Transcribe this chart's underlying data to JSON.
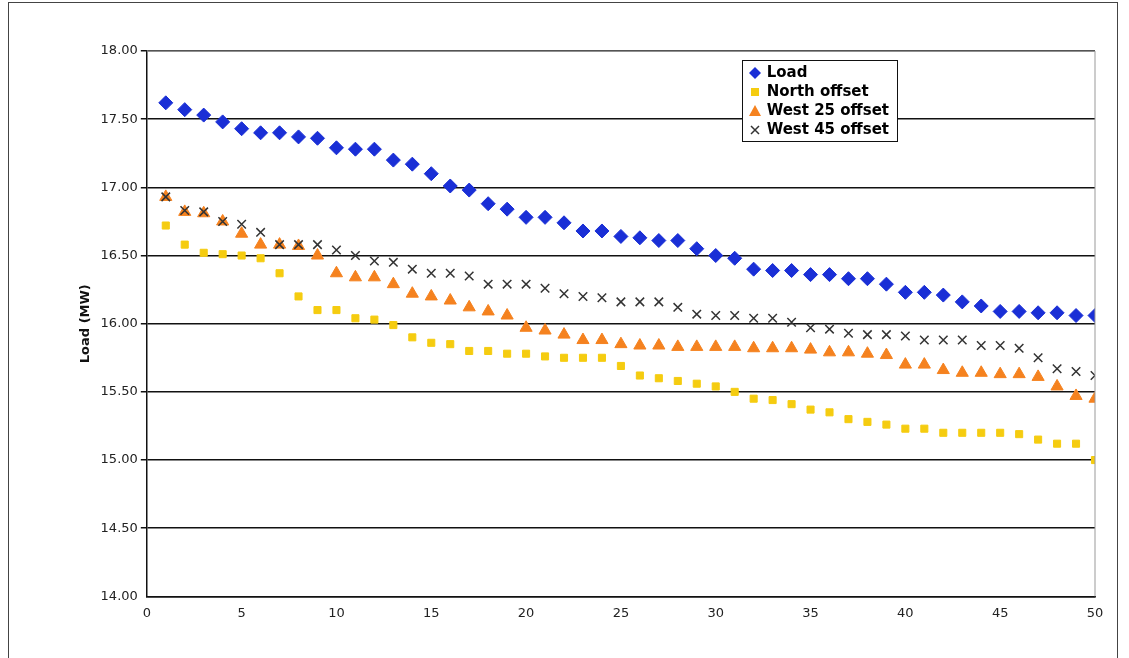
{
  "chart_data": {
    "type": "scatter",
    "ylabel": "Load (MW)",
    "x": [
      1,
      2,
      3,
      4,
      5,
      6,
      7,
      8,
      9,
      10,
      11,
      12,
      13,
      14,
      15,
      16,
      17,
      18,
      19,
      20,
      21,
      22,
      23,
      24,
      25,
      26,
      27,
      28,
      29,
      30,
      31,
      32,
      33,
      34,
      35,
      36,
      37,
      38,
      39,
      40,
      41,
      42,
      43,
      44,
      45,
      46,
      47,
      48,
      49,
      50
    ],
    "series": [
      {
        "name": "Load",
        "color": "#1a2fd6",
        "marker": "diamond",
        "values": [
          17.62,
          17.57,
          17.53,
          17.48,
          17.43,
          17.4,
          17.4,
          17.37,
          17.36,
          17.29,
          17.28,
          17.28,
          17.2,
          17.17,
          17.1,
          17.01,
          16.98,
          16.88,
          16.84,
          16.78,
          16.78,
          16.74,
          16.68,
          16.68,
          16.64,
          16.63,
          16.61,
          16.61,
          16.55,
          16.5,
          16.48,
          16.4,
          16.39,
          16.39,
          16.36,
          16.36,
          16.33,
          16.33,
          16.29,
          16.23,
          16.23,
          16.21,
          16.16,
          16.13,
          16.09,
          16.09,
          16.08,
          16.08,
          16.06,
          16.06
        ]
      },
      {
        "name": "North offset",
        "color": "#f5cc10",
        "marker": "square",
        "values": [
          16.72,
          16.58,
          16.52,
          16.51,
          16.5,
          16.48,
          16.37,
          16.2,
          16.1,
          16.1,
          16.04,
          16.03,
          15.99,
          15.9,
          15.86,
          15.85,
          15.8,
          15.8,
          15.78,
          15.78,
          15.76,
          15.75,
          15.75,
          15.75,
          15.69,
          15.62,
          15.6,
          15.58,
          15.56,
          15.54,
          15.5,
          15.45,
          15.44,
          15.41,
          15.37,
          15.35,
          15.3,
          15.28,
          15.26,
          15.23,
          15.23,
          15.2,
          15.2,
          15.2,
          15.2,
          15.19,
          15.15,
          15.12,
          15.12,
          15.0
        ]
      },
      {
        "name": "West 25 offset",
        "color": "#f5821f",
        "marker": "triangle",
        "values": [
          16.93,
          16.82,
          16.81,
          16.75,
          16.66,
          16.58,
          16.58,
          16.57,
          16.5,
          16.37,
          16.34,
          16.34,
          16.29,
          16.22,
          16.2,
          16.17,
          16.12,
          16.09,
          16.06,
          15.97,
          15.95,
          15.92,
          15.88,
          15.88,
          15.85,
          15.84,
          15.84,
          15.83,
          15.83,
          15.83,
          15.83,
          15.82,
          15.82,
          15.82,
          15.81,
          15.79,
          15.79,
          15.78,
          15.77,
          15.7,
          15.7,
          15.66,
          15.64,
          15.64,
          15.63,
          15.63,
          15.61,
          15.54,
          15.47,
          15.45
        ]
      },
      {
        "name": "West 45 offset",
        "color": "#333333",
        "marker": "cross",
        "values": [
          16.93,
          16.83,
          16.82,
          16.75,
          16.73,
          16.67,
          16.58,
          16.58,
          16.58,
          16.54,
          16.5,
          16.46,
          16.45,
          16.4,
          16.37,
          16.37,
          16.35,
          16.29,
          16.29,
          16.29,
          16.26,
          16.22,
          16.2,
          16.19,
          16.16,
          16.16,
          16.16,
          16.12,
          16.07,
          16.06,
          16.06,
          16.04,
          16.04,
          16.01,
          15.97,
          15.96,
          15.93,
          15.92,
          15.92,
          15.91,
          15.88,
          15.88,
          15.88,
          15.84,
          15.84,
          15.82,
          15.75,
          15.67,
          15.65,
          15.62
        ]
      }
    ],
    "xlim": [
      0,
      50
    ],
    "xticks": [
      0,
      5,
      10,
      15,
      20,
      25,
      30,
      35,
      40,
      45,
      50
    ],
    "ylim": [
      14,
      18
    ],
    "yticks": [
      {
        "value": 14,
        "label": "14.00"
      },
      {
        "value": 14.5,
        "label": "14.50"
      },
      {
        "value": 15,
        "label": "15.00"
      },
      {
        "value": 15.5,
        "label": "15.50"
      },
      {
        "value": 16,
        "label": "16.00"
      },
      {
        "value": 16.5,
        "label": "16.50"
      },
      {
        "value": 17,
        "label": "17.00"
      },
      {
        "value": 17.5,
        "label": "17.50"
      },
      {
        "value": 18,
        "label": "18.00"
      }
    ],
    "grid": "y",
    "legend": "top right"
  }
}
